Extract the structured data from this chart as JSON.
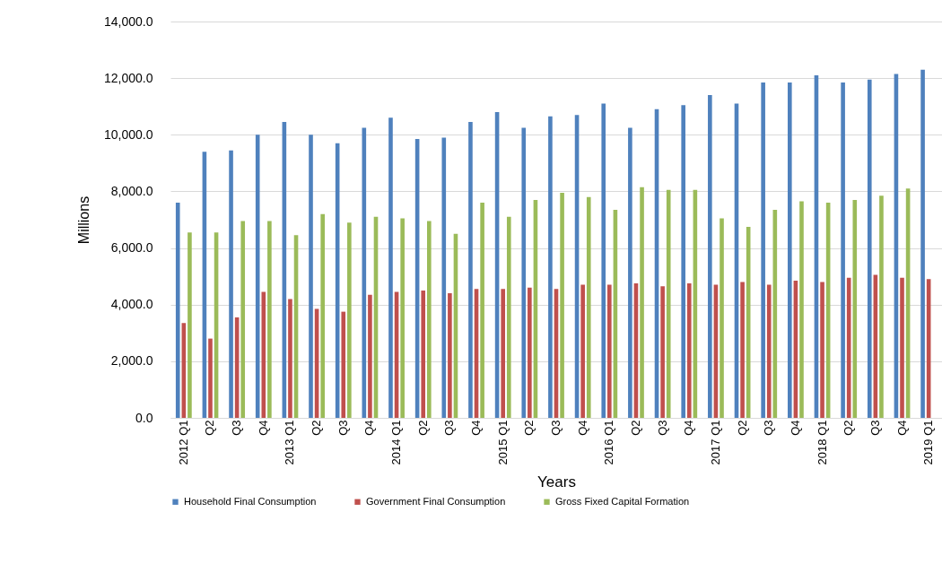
{
  "chart_data": {
    "type": "bar",
    "xlabel": "Years",
    "ylabel": "Millions",
    "categories": [
      "2012 Q1",
      "Q2",
      "Q3",
      "Q4",
      "2013 Q1",
      "Q2",
      "Q3",
      "Q4",
      "2014 Q1",
      "Q2",
      "Q3",
      "Q4",
      "2015 Q1",
      "Q2",
      "Q3",
      "Q4",
      "2016 Q1",
      "Q2",
      "Q3",
      "Q4",
      "2017 Q1",
      "Q2",
      "Q3",
      "Q4",
      "2018 Q1",
      "Q2",
      "Q3",
      "Q4",
      "2019 Q1"
    ],
    "series": [
      {
        "name": "Household Final Consumption",
        "color": "#4f81bd",
        "values": [
          7600,
          9400,
          9450,
          10000,
          10450,
          10000,
          9700,
          10250,
          10600,
          9850,
          9900,
          10450,
          10800,
          10250,
          10650,
          10700,
          11100,
          10250,
          10900,
          11050,
          11400,
          11100,
          11850,
          11850,
          12100,
          11850,
          11950,
          12150,
          12300
        ]
      },
      {
        "name": "Government Final Consumption",
        "color": "#c0504d",
        "values": [
          3350,
          2800,
          3550,
          4450,
          4200,
          3850,
          3750,
          4350,
          4450,
          4500,
          4400,
          4550,
          4550,
          4600,
          4550,
          4700,
          4700,
          4750,
          4650,
          4750,
          4700,
          4800,
          4700,
          4850,
          4800,
          4950,
          5050,
          4950,
          4900
        ]
      },
      {
        "name": "Gross Fixed Capital Formation",
        "color": "#9bbb59",
        "values": [
          6550,
          6550,
          6950,
          6950,
          6450,
          7200,
          6900,
          7100,
          7050,
          6950,
          6500,
          7600,
          7100,
          7700,
          7950,
          7800,
          7350,
          8150,
          8050,
          8050,
          7050,
          6750,
          7350,
          7650,
          7600,
          7700,
          7850,
          8100,
          null
        ]
      }
    ],
    "ylim": [
      0,
      14000
    ],
    "yticks": [
      {
        "value": 0,
        "label": "0.0"
      },
      {
        "value": 2000,
        "label": "2,000.0"
      },
      {
        "value": 4000,
        "label": "4,000.0"
      },
      {
        "value": 6000,
        "label": "6,000.0"
      },
      {
        "value": 8000,
        "label": "8,000.0"
      },
      {
        "value": 10000,
        "label": "10,000.0"
      },
      {
        "value": 12000,
        "label": "12,000.0"
      },
      {
        "value": 14000,
        "label": "14,000.0"
      }
    ],
    "grid": "y",
    "legend": "bottom"
  }
}
